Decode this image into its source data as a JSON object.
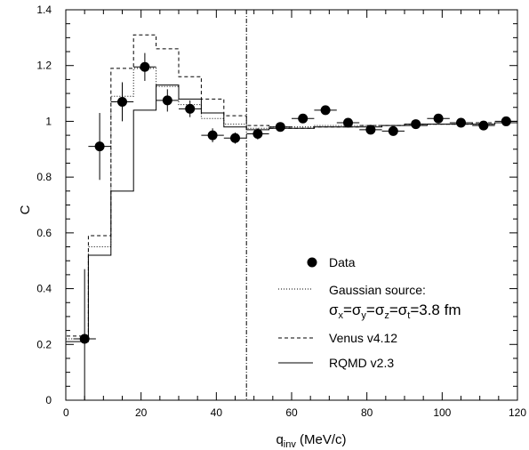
{
  "chart_data": {
    "type": "line",
    "title": "",
    "xlabel": "q",
    "xlabel_sub": "inv",
    "xlabel_unit": " (MeV/c)",
    "ylabel": "C",
    "xlim": [
      0,
      120
    ],
    "ylim": [
      0,
      1.4
    ],
    "x_ticks": [
      "0",
      "20",
      "40",
      "60",
      "80",
      "100",
      "120"
    ],
    "y_ticks": [
      "0",
      "0.2",
      "0.4",
      "0.6",
      "0.8",
      "1",
      "1.2",
      "1.4"
    ],
    "vertical_reference_line_x": 48,
    "grid": false,
    "legend_position": "lower-right",
    "legend": {
      "data": "Data",
      "gaussian_line1": "Gaussian source:",
      "gaussian_line2": "σx=σy=σz=σt=3.8 fm",
      "venus": "Venus v4.12",
      "rqmd": "RQMD v2.3"
    },
    "data_points": {
      "name": "Data",
      "x": [
        5,
        9,
        15,
        21,
        27,
        33,
        39,
        45,
        51,
        57,
        63,
        69,
        75,
        81,
        87,
        93,
        99,
        105,
        111,
        117
      ],
      "y": [
        0.22,
        0.91,
        1.07,
        1.195,
        1.075,
        1.045,
        0.95,
        0.94,
        0.955,
        0.98,
        1.01,
        1.04,
        0.995,
        0.97,
        0.965,
        0.99,
        1.01,
        0.995,
        0.985,
        1.0
      ],
      "y_err": [
        0.25,
        0.12,
        0.07,
        0.05,
        0.04,
        0.03,
        0.025,
        0.02,
        0.02,
        0.015,
        0.015,
        0.015,
        0.015,
        0.015,
        0.015,
        0.015,
        0.015,
        0.015,
        0.015,
        0.015
      ],
      "x_err": 3
    },
    "series": [
      {
        "name": "Gaussian source",
        "style": "dotted",
        "bin_edges": [
          0,
          6,
          12,
          18,
          24,
          30,
          36,
          42,
          48,
          54,
          60,
          66,
          72,
          78,
          84,
          90,
          96,
          102,
          108,
          114,
          120
        ],
        "values": [
          0.22,
          0.55,
          1.09,
          1.19,
          1.125,
          1.06,
          1.01,
          0.99,
          0.975,
          0.98,
          0.98,
          0.985,
          0.985,
          0.985,
          0.985,
          0.99,
          0.99,
          0.99,
          0.99,
          0.995
        ]
      },
      {
        "name": "Venus v4.12",
        "style": "dashed",
        "bin_edges": [
          0,
          6,
          12,
          18,
          24,
          30,
          36,
          42,
          48,
          54,
          60,
          66,
          72,
          78,
          84,
          90,
          96,
          102,
          108,
          114,
          120
        ],
        "values": [
          0.23,
          0.59,
          1.19,
          1.31,
          1.26,
          1.16,
          1.08,
          1.02,
          0.985,
          0.975,
          0.975,
          0.98,
          0.98,
          0.985,
          0.985,
          0.99,
          0.99,
          0.99,
          0.995,
          0.995
        ]
      },
      {
        "name": "RQMD v2.3",
        "style": "solid",
        "bin_edges": [
          0,
          6,
          12,
          18,
          24,
          30,
          36,
          42,
          48,
          54,
          60,
          66,
          72,
          78,
          84,
          90,
          96,
          102,
          108,
          114,
          120
        ],
        "values": [
          0.21,
          0.52,
          0.75,
          1.04,
          1.13,
          1.08,
          1.03,
          0.98,
          0.97,
          0.975,
          0.975,
          0.98,
          0.98,
          0.98,
          0.985,
          0.985,
          0.99,
          0.99,
          0.99,
          0.995
        ]
      }
    ]
  }
}
